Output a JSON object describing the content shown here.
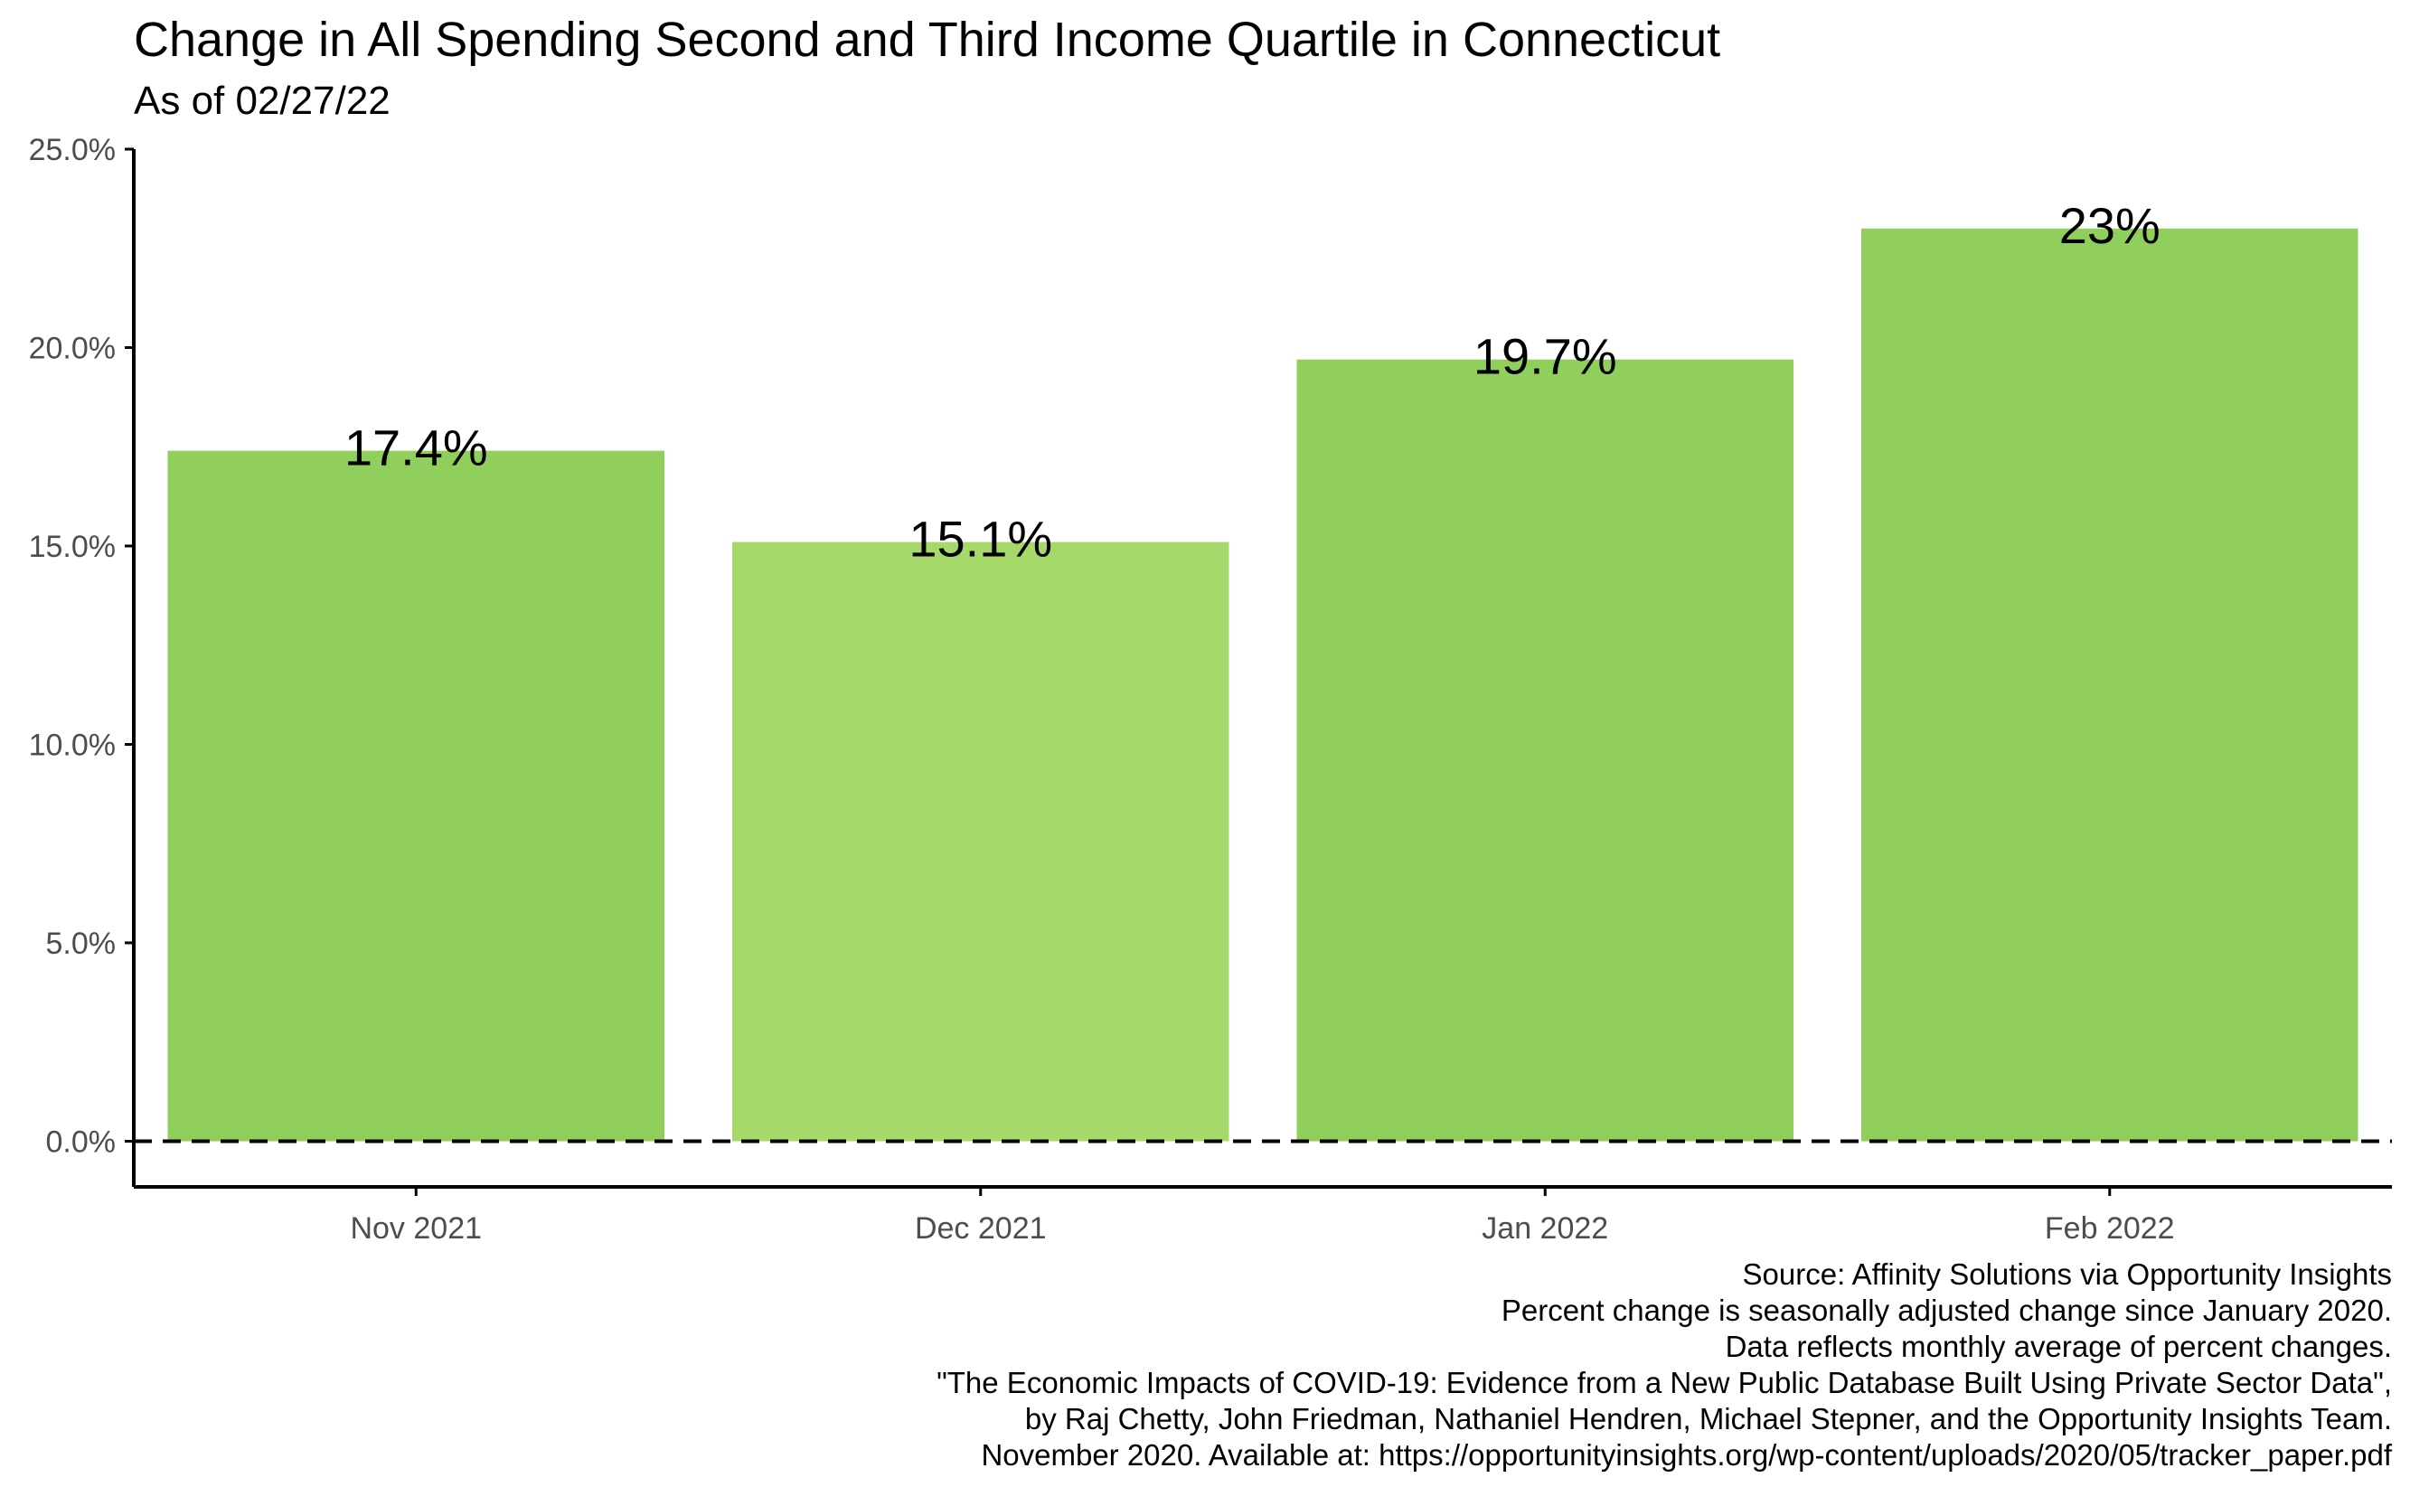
{
  "chart_data": {
    "type": "bar",
    "title": "Change in All Spending Second and Third Income Quartile in Connecticut",
    "subtitle": "As of 02/27/22",
    "categories": [
      "Nov 2021",
      "Dec 2021",
      "Jan 2022",
      "Feb 2022"
    ],
    "values": [
      17.4,
      15.1,
      19.7,
      23.0
    ],
    "data_labels": [
      "17.4%",
      "15.1%",
      "19.7%",
      "23%"
    ],
    "bar_colors": [
      "#91cf5c",
      "#a6d96a",
      "#91cf5c",
      "#91cf5c"
    ],
    "xlabel": "",
    "ylabel": "",
    "ylim": [
      -1.15,
      25.0
    ],
    "y_ticks": [
      0,
      5,
      10,
      15,
      20,
      25
    ],
    "y_tick_labels": [
      "0.0%",
      "5.0%",
      "10.0%",
      "15.0%",
      "20.0%",
      "25.0%"
    ],
    "reference_line": {
      "y": 0,
      "style": "dashed",
      "color": "#000000"
    },
    "grid": false,
    "legend": "none",
    "caption": [
      "Source: Affinity Solutions via Opportunity Insights",
      "Percent change is seasonally adjusted change since January 2020.",
      "Data reflects monthly average of percent changes.",
      "\"The Economic Impacts of COVID-19: Evidence from a New Public Database Built Using Private Sector Data\",",
      "by Raj Chetty, John Friedman, Nathaniel Hendren, Michael Stepner, and the Opportunity Insights Team.",
      "November 2020. Available at: https://opportunityinsights.org/wp-content/uploads/2020/05/tracker_paper.pdf"
    ]
  }
}
